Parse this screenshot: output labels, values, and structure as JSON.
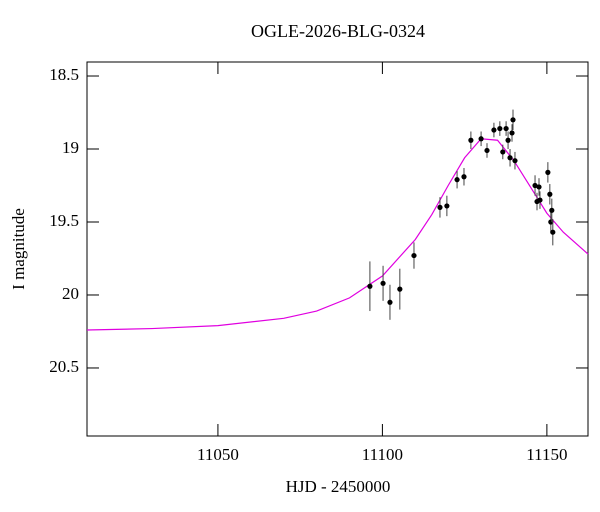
{
  "chart_data": {
    "type": "scatter",
    "title": "OGLE-2026-BLG-0324",
    "x_label": "HJD - 2450000",
    "y_label": "I magnitude",
    "xlim": [
      11010.2,
      11162.5
    ],
    "xticks": [
      11050,
      11100,
      11150
    ],
    "ylim": [
      18.404,
      20.966
    ],
    "y_inverted": true,
    "yticks": [
      {
        "value": 18.5,
        "label": "18.5"
      },
      19,
      {
        "value": 19.5,
        "label": "19.5"
      },
      20,
      {
        "value": 20.5,
        "label": "20.5"
      }
    ],
    "points": {
      "color": "#000000",
      "x": [
        11096.2,
        11100.2,
        11102.3,
        11105.3,
        11109.6,
        11117.5,
        11119.6,
        11122.7,
        11124.8,
        11126.9,
        11130.0,
        11131.8,
        11133.9,
        11135.7,
        11136.6,
        11137.6,
        11138.2,
        11138.8,
        11139.4,
        11139.7,
        11140.3,
        11146.4,
        11147.0,
        11147.6,
        11147.9,
        11150.3,
        11150.9,
        11151.2,
        11151.5,
        11151.8
      ],
      "values": [
        19.94,
        19.92,
        20.05,
        19.96,
        19.73,
        19.4,
        19.39,
        19.21,
        19.19,
        18.94,
        18.93,
        19.01,
        18.87,
        18.86,
        19.02,
        18.86,
        18.94,
        19.06,
        18.89,
        18.8,
        19.08,
        19.25,
        19.36,
        19.26,
        19.35,
        19.16,
        19.31,
        19.5,
        19.42,
        19.57
      ],
      "errors": [
        0.17,
        0.12,
        0.12,
        0.14,
        0.09,
        0.07,
        0.07,
        0.06,
        0.06,
        0.06,
        0.05,
        0.05,
        0.05,
        0.05,
        0.05,
        0.05,
        0.06,
        0.06,
        0.06,
        0.07,
        0.06,
        0.07,
        0.06,
        0.06,
        0.06,
        0.07,
        0.07,
        0.07,
        0.08,
        0.09
      ]
    },
    "model": {
      "color": "#e000e0",
      "x": [
        11010.2,
        11030,
        11050,
        11070,
        11080,
        11090,
        11100,
        11110,
        11115,
        11120,
        11125,
        11130,
        11135,
        11140,
        11145,
        11150,
        11155,
        11162.5
      ],
      "values": [
        20.24,
        20.23,
        20.21,
        20.16,
        20.11,
        20.02,
        19.87,
        19.62,
        19.45,
        19.25,
        19.06,
        18.93,
        18.94,
        19.08,
        19.26,
        19.44,
        19.57,
        19.72
      ]
    }
  }
}
